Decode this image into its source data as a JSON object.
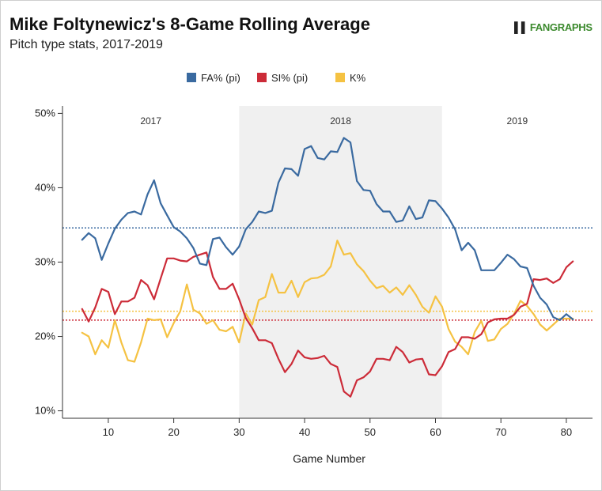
{
  "header": {
    "title": "Mike Foltynewicz's 8-Game Rolling Average",
    "subtitle": "Pitch type stats, 2017-2019",
    "brand": "FANGRAPHS",
    "brand_mark": "▌▌"
  },
  "chart_data": {
    "type": "line",
    "title": "Mike Foltynewicz's 8-Game Rolling Average",
    "subtitle": "Pitch type stats, 2017-2019",
    "xlabel": "Game Number",
    "ylabel": "",
    "xlim": [
      3,
      84
    ],
    "ylim": [
      9,
      51
    ],
    "xticks": [
      10,
      20,
      30,
      40,
      50,
      60,
      70,
      80
    ],
    "xtick_labels": [
      "10",
      "20",
      "30",
      "40",
      "50",
      "60",
      "70",
      "80"
    ],
    "yticks": [
      10,
      20,
      30,
      40,
      50
    ],
    "ytick_labels": [
      "10%",
      "20%",
      "30%",
      "40%",
      "50%"
    ],
    "grid": false,
    "legend_position": "top-center",
    "seasons": [
      {
        "label": "2017",
        "start": 3,
        "end": 30,
        "shaded": false
      },
      {
        "label": "2018",
        "start": 30,
        "end": 61,
        "shaded": true
      },
      {
        "label": "2019",
        "start": 61,
        "end": 84,
        "shaded": false
      }
    ],
    "series": [
      {
        "name": "FA% (pi)",
        "color": "#3a6aa0",
        "average": 34.6,
        "x": [
          6,
          7,
          8,
          9,
          10,
          11,
          12,
          13,
          14,
          15,
          16,
          17,
          18,
          19,
          20,
          21,
          22,
          23,
          24,
          25,
          26,
          27,
          28,
          29,
          30,
          31,
          32,
          33,
          34,
          35,
          36,
          37,
          38,
          39,
          40,
          41,
          42,
          43,
          44,
          45,
          46,
          47,
          48,
          49,
          50,
          51,
          52,
          53,
          54,
          55,
          56,
          57,
          58,
          59,
          60,
          61,
          62,
          63,
          64,
          65,
          66,
          67,
          68,
          69,
          70,
          71,
          72,
          73,
          74,
          75,
          76,
          77,
          78,
          79,
          80,
          81
        ],
        "values": [
          33.0,
          33.9,
          33.2,
          30.3,
          32.5,
          34.5,
          35.7,
          36.6,
          36.8,
          36.4,
          39.1,
          41.0,
          37.9,
          36.3,
          34.7,
          34.1,
          33.2,
          31.9,
          29.8,
          29.6,
          33.1,
          33.3,
          32.0,
          31.0,
          32.1,
          34.4,
          35.4,
          36.8,
          36.6,
          36.9,
          40.7,
          42.6,
          42.5,
          41.6,
          45.2,
          45.6,
          44.0,
          43.8,
          44.9,
          44.8,
          46.7,
          46.1,
          40.9,
          39.7,
          39.6,
          37.8,
          36.8,
          36.8,
          35.4,
          35.6,
          37.5,
          35.8,
          36.0,
          38.3,
          38.2,
          37.2,
          36.0,
          34.4,
          31.6,
          32.6,
          31.6,
          28.9,
          28.9,
          28.9,
          29.9,
          31.0,
          30.4,
          29.4,
          29.2,
          26.8,
          25.2,
          24.3,
          22.6,
          22.2,
          23.0,
          22.3
        ]
      },
      {
        "name": "SI% (pi)",
        "color": "#cc2b38",
        "average": 22.2,
        "x": [
          6,
          7,
          8,
          9,
          10,
          11,
          12,
          13,
          14,
          15,
          16,
          17,
          18,
          19,
          20,
          21,
          22,
          23,
          24,
          25,
          26,
          27,
          28,
          29,
          30,
          31,
          32,
          33,
          34,
          35,
          36,
          37,
          38,
          39,
          40,
          41,
          42,
          43,
          44,
          45,
          46,
          47,
          48,
          49,
          50,
          51,
          52,
          53,
          54,
          55,
          56,
          57,
          58,
          59,
          60,
          61,
          62,
          63,
          64,
          65,
          66,
          67,
          68,
          69,
          70,
          71,
          72,
          73,
          74,
          75,
          76,
          77,
          78,
          79,
          80,
          81
        ],
        "values": [
          23.7,
          22.0,
          23.9,
          26.4,
          26.0,
          23.0,
          24.7,
          24.7,
          25.2,
          27.6,
          26.9,
          25.0,
          27.8,
          30.5,
          30.5,
          30.2,
          30.1,
          30.7,
          31.0,
          31.3,
          28.0,
          26.4,
          26.4,
          27.1,
          25.0,
          22.5,
          21.1,
          19.5,
          19.5,
          19.1,
          17.0,
          15.2,
          16.3,
          18.1,
          17.2,
          17.0,
          17.1,
          17.4,
          16.3,
          15.9,
          12.6,
          11.9,
          14.1,
          14.5,
          15.3,
          17.0,
          17.0,
          16.8,
          18.6,
          17.9,
          16.5,
          16.9,
          17.0,
          14.9,
          14.8,
          16.0,
          17.9,
          18.3,
          19.9,
          19.9,
          19.7,
          20.3,
          21.9,
          22.3,
          22.4,
          22.4,
          22.9,
          24.0,
          24.4,
          27.7,
          27.6,
          27.8,
          27.2,
          27.7,
          29.3,
          30.1
        ]
      },
      {
        "name": "K%",
        "color": "#f5c242",
        "average": 23.4,
        "x": [
          6,
          7,
          8,
          9,
          10,
          11,
          12,
          13,
          14,
          15,
          16,
          17,
          18,
          19,
          20,
          21,
          22,
          23,
          24,
          25,
          26,
          27,
          28,
          29,
          30,
          31,
          32,
          33,
          34,
          35,
          36,
          37,
          38,
          39,
          40,
          41,
          42,
          43,
          44,
          45,
          46,
          47,
          48,
          49,
          50,
          51,
          52,
          53,
          54,
          55,
          56,
          57,
          58,
          59,
          60,
          61,
          62,
          63,
          64,
          65,
          66,
          67,
          68,
          69,
          70,
          71,
          72,
          73,
          74,
          75,
          76,
          77,
          78,
          79,
          80,
          81
        ],
        "values": [
          20.5,
          20.0,
          17.6,
          19.5,
          18.5,
          22.2,
          19.2,
          16.8,
          16.6,
          19.2,
          22.4,
          22.2,
          22.3,
          19.9,
          21.8,
          23.4,
          27.0,
          23.6,
          23.1,
          21.7,
          22.2,
          20.9,
          20.7,
          21.3,
          19.2,
          23.1,
          21.6,
          24.9,
          25.3,
          28.4,
          25.9,
          25.9,
          27.5,
          25.3,
          27.3,
          27.8,
          27.9,
          28.3,
          29.4,
          32.9,
          31.0,
          31.2,
          29.7,
          28.8,
          27.5,
          26.5,
          26.8,
          25.9,
          26.6,
          25.6,
          26.9,
          25.6,
          24.0,
          23.2,
          25.4,
          24.0,
          21.0,
          19.3,
          18.6,
          17.6,
          20.6,
          22.1,
          19.4,
          19.6,
          21.0,
          21.7,
          23.0,
          24.8,
          24.1,
          23.0,
          21.6,
          20.8,
          21.6,
          22.4,
          22.4,
          22.4
        ]
      }
    ]
  }
}
